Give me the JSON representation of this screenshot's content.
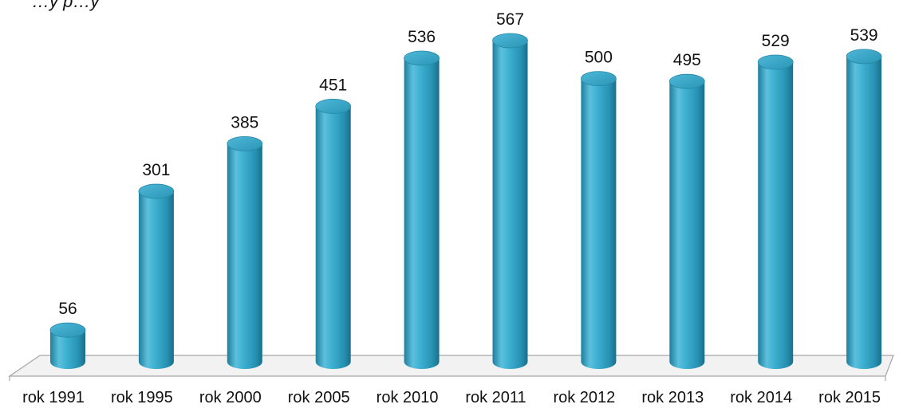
{
  "chart_data": {
    "type": "bar",
    "style": "3d-cylinder",
    "title": "",
    "title_fragment": "…y p…y",
    "xlabel": "",
    "ylabel": "",
    "categories": [
      "rok 1991",
      "rok 1995",
      "rok 2000",
      "rok 2005",
      "rok 2010",
      "rok 2011",
      "rok 2012",
      "rok 2013",
      "rok 2014",
      "rok 2015"
    ],
    "values": [
      56,
      301,
      385,
      451,
      536,
      567,
      500,
      495,
      529,
      539
    ],
    "data_labels": [
      "56",
      "301",
      "385",
      "451",
      "536",
      "567",
      "500",
      "495",
      "529",
      "539"
    ],
    "ylim": [
      0,
      567
    ],
    "grid": false,
    "legend": "none",
    "colors": {
      "bar_body": "#2e9fc0",
      "bar_light": "#7fd3ea",
      "bar_dark": "#1a6f8a",
      "bar_top": "#5cc0dd",
      "floor_stroke": "#a6a6a6",
      "floor_fill": "#f2f2f2"
    }
  }
}
